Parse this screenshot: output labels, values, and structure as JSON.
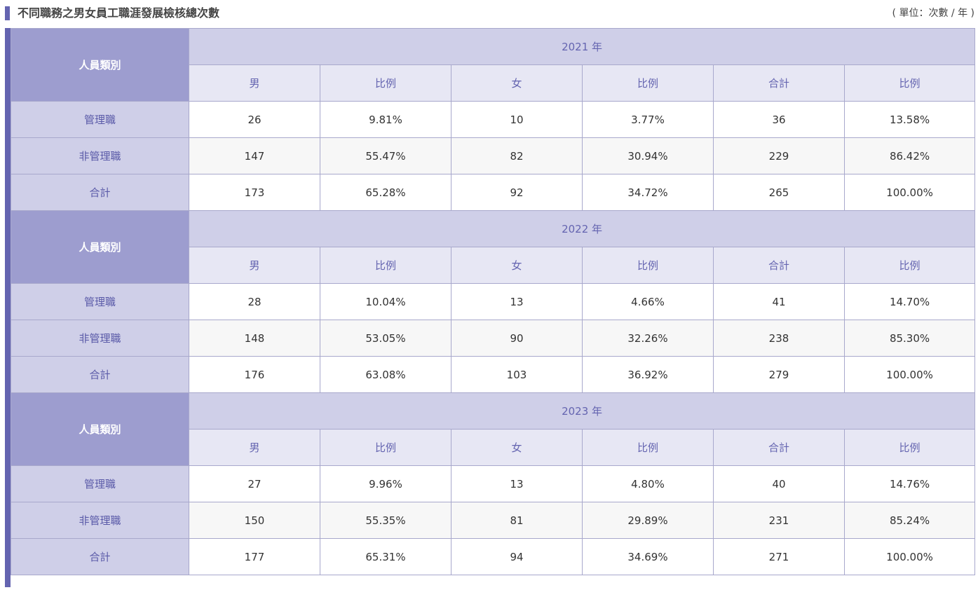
{
  "title": "不同職務之男女員工職涯發展檢核總次數",
  "unit": "( 單位：次數 / 年 )",
  "category_header": "人員類別",
  "sub_headers": [
    "男",
    "比例",
    "女",
    "比例",
    "合計",
    "比例"
  ],
  "years": [
    {
      "label": "2021 年",
      "rows": [
        {
          "name": "管理職",
          "values": [
            "26",
            "9.81%",
            "10",
            "3.77%",
            "36",
            "13.58%"
          ]
        },
        {
          "name": "非管理職",
          "values": [
            "147",
            "55.47%",
            "82",
            "30.94%",
            "229",
            "86.42%"
          ]
        },
        {
          "name": "合計",
          "values": [
            "173",
            "65.28%",
            "92",
            "34.72%",
            "265",
            "100.00%"
          ]
        }
      ]
    },
    {
      "label": "2022 年",
      "rows": [
        {
          "name": "管理職",
          "values": [
            "28",
            "10.04%",
            "13",
            "4.66%",
            "41",
            "14.70%"
          ]
        },
        {
          "name": "非管理職",
          "values": [
            "148",
            "53.05%",
            "90",
            "32.26%",
            "238",
            "85.30%"
          ]
        },
        {
          "name": "合計",
          "values": [
            "176",
            "63.08%",
            "103",
            "36.92%",
            "279",
            "100.00%"
          ]
        }
      ]
    },
    {
      "label": "2023 年",
      "rows": [
        {
          "name": "管理職",
          "values": [
            "27",
            "9.96%",
            "13",
            "4.80%",
            "40",
            "14.76%"
          ]
        },
        {
          "name": "非管理職",
          "values": [
            "150",
            "55.35%",
            "81",
            "29.89%",
            "231",
            "85.24%"
          ]
        },
        {
          "name": "合計",
          "values": [
            "177",
            "65.31%",
            "94",
            "34.69%",
            "271",
            "100.00%"
          ]
        }
      ]
    }
  ],
  "colors": {
    "accent": "#6464b0",
    "category_header_bg": "#9d9dcf",
    "year_header_bg": "#cfcfe8",
    "sub_header_bg": "#e7e7f4",
    "row_alt_bg": "#f7f7f7"
  }
}
